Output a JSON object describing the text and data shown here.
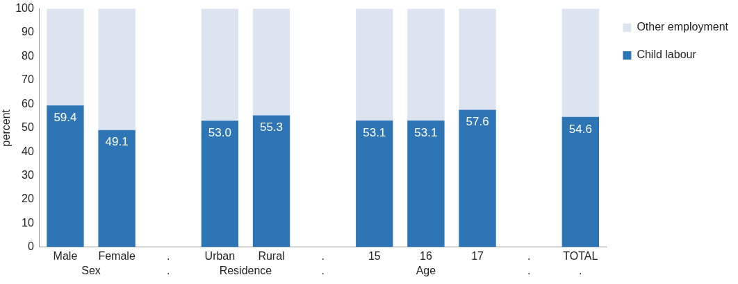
{
  "chart_data": {
    "type": "bar",
    "stacked": true,
    "ylabel": "percent",
    "categories": [
      "Male",
      "Female",
      ".",
      "Urban",
      "Rural",
      ".",
      "15",
      "16",
      "17",
      ".",
      "TOTAL"
    ],
    "series": [
      {
        "name": "Child labour",
        "color": "#2e75b6",
        "values": [
          59.4,
          49.1,
          null,
          53.0,
          55.3,
          null,
          53.1,
          53.1,
          57.6,
          null,
          54.6
        ],
        "value_labels": [
          "59.4",
          "49.1",
          null,
          "53.0",
          "55.3",
          null,
          "53.1",
          "53.1",
          "57.6",
          null,
          "54.6"
        ]
      },
      {
        "name": "Other employment",
        "color": "#dce4f0",
        "values": [
          40.6,
          50.9,
          null,
          47.0,
          44.7,
          null,
          46.9,
          46.9,
          42.4,
          null,
          45.4
        ]
      }
    ],
    "ylim": [
      0,
      100
    ],
    "yticks": [
      0,
      10,
      20,
      30,
      40,
      50,
      60,
      70,
      80,
      90,
      100
    ],
    "grid": false,
    "legend": "top right",
    "annotations": [
      "Sex",
      ".",
      "Residence",
      ".",
      "Age",
      ".",
      "."
    ]
  }
}
